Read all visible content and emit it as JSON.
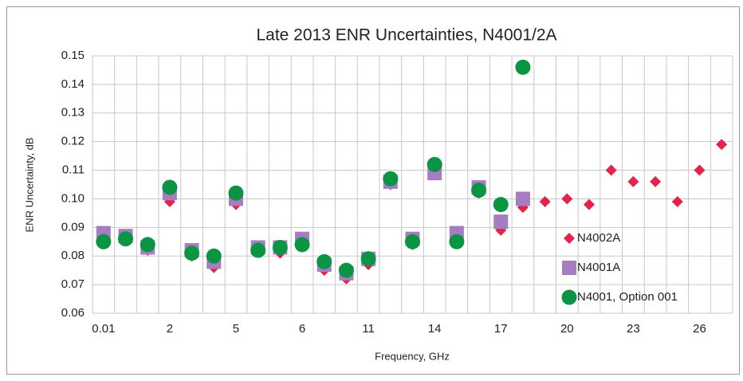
{
  "chart_data": {
    "type": "scatter",
    "title": "Late 2013 ENR Uncertainties, N4001/2A",
    "x_label": "Frequency, GHz",
    "y_label": "ENR Uncertainty, dB",
    "categories": [
      "0.01",
      null,
      null,
      "2",
      null,
      null,
      "5",
      null,
      null,
      "6",
      null,
      null,
      "11",
      null,
      null,
      "14",
      null,
      null,
      "17",
      null,
      null,
      "20",
      null,
      null,
      "23",
      null,
      null,
      "26",
      null
    ],
    "series": [
      {
        "name": "N4002A",
        "color": "#e3234a",
        "marker": "diamond",
        "values": [
          0.086,
          0.086,
          0.082,
          0.099,
          0.08,
          0.076,
          0.098,
          0.082,
          0.081,
          0.084,
          0.075,
          0.072,
          0.077,
          0.105,
          0.084,
          0.11,
          0.086,
          0.102,
          0.089,
          0.097,
          0.099,
          0.1,
          0.098,
          0.11,
          0.106,
          0.106,
          0.099,
          0.11,
          0.119
        ]
      },
      {
        "name": "N4001A",
        "color": "#a77dc2",
        "marker": "square",
        "values": [
          0.088,
          0.087,
          0.083,
          0.102,
          0.082,
          0.078,
          0.1,
          0.083,
          0.083,
          0.086,
          0.077,
          0.074,
          0.079,
          0.106,
          0.086,
          0.109,
          0.088,
          0.104,
          0.092,
          0.1,
          null,
          null,
          null,
          null,
          null,
          null,
          null,
          null,
          null
        ]
      },
      {
        "name": "N4001, Option 001",
        "color": "#0b9444",
        "marker": "circle",
        "values": [
          0.085,
          0.086,
          0.084,
          0.104,
          0.081,
          0.08,
          0.102,
          0.082,
          0.083,
          0.084,
          0.078,
          0.075,
          0.079,
          0.107,
          0.085,
          0.112,
          0.085,
          0.103,
          0.098,
          0.146,
          null,
          null,
          null,
          null,
          null,
          null,
          null,
          null,
          null
        ]
      }
    ],
    "ylim": [
      0.06,
      0.15
    ],
    "yticks": [
      0.06,
      0.07,
      0.08,
      0.09,
      {
        "value": 0.1,
        "label": "0.10"
      },
      0.11,
      0.12,
      0.13,
      0.14,
      0.15
    ],
    "grid": true,
    "legend": "right"
  }
}
